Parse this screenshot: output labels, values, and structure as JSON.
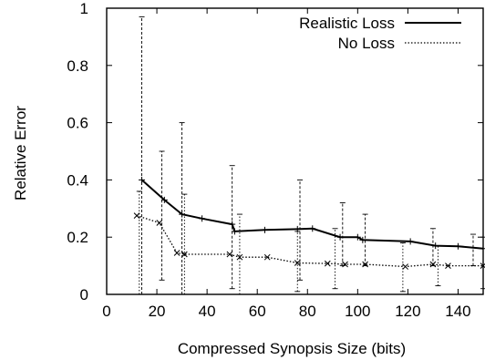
{
  "chart_data": {
    "type": "line",
    "title": "",
    "xlabel": "Compressed Synopsis Size (bits)",
    "ylabel": "Relative Error",
    "xlim": [
      0,
      150
    ],
    "ylim": [
      0,
      1
    ],
    "x_ticks": [
      0,
      20,
      40,
      60,
      80,
      100,
      120,
      140
    ],
    "y_ticks": [
      0,
      0.2,
      0.4,
      0.6,
      0.8,
      1
    ],
    "x_tick_labels": [
      "0",
      "20",
      "40",
      "60",
      "80",
      "100",
      "120",
      "140"
    ],
    "y_tick_labels": [
      "0",
      "0.2",
      "0.4",
      "0.6",
      "0.8",
      "1"
    ],
    "grid": false,
    "legend_position": "top-right",
    "series": [
      {
        "name": "Realistic Loss",
        "style": "solid",
        "marker": "plus",
        "color": "#000000",
        "x": [
          14,
          23,
          30,
          38,
          50,
          51,
          63,
          76,
          82,
          93,
          100,
          102,
          121,
          131,
          140,
          150
        ],
        "y": [
          0.4,
          0.33,
          0.28,
          0.265,
          0.245,
          0.22,
          0.225,
          0.228,
          0.23,
          0.2,
          0.2,
          0.19,
          0.185,
          0.17,
          0.168,
          0.16
        ],
        "error_x": [
          14,
          22,
          30,
          50,
          77,
          94,
          103,
          130,
          146
        ],
        "error_low": [
          0.0,
          0.05,
          0.0,
          0.02,
          0.05,
          0.1,
          0.1,
          0.1,
          0.1
        ],
        "error_high": [
          0.97,
          0.5,
          0.6,
          0.45,
          0.4,
          0.32,
          0.28,
          0.23,
          0.21
        ]
      },
      {
        "name": "No Loss",
        "style": "dotted",
        "marker": "cross",
        "color": "#000000",
        "x": [
          12,
          21,
          28,
          31,
          49,
          53,
          64,
          76,
          88,
          95,
          103,
          119,
          130,
          136,
          150
        ],
        "y": [
          0.275,
          0.25,
          0.145,
          0.14,
          0.14,
          0.13,
          0.13,
          0.11,
          0.108,
          0.105,
          0.105,
          0.097,
          0.105,
          0.1,
          0.1
        ],
        "error_x": [
          13,
          31,
          53,
          76,
          91,
          118,
          132,
          150
        ],
        "error_low": [
          0.0,
          0.0,
          0.0,
          0.01,
          0.02,
          0.01,
          0.03,
          0.02
        ],
        "error_high": [
          0.36,
          0.35,
          0.28,
          0.22,
          0.23,
          0.18,
          0.17,
          0.2
        ]
      }
    ]
  }
}
